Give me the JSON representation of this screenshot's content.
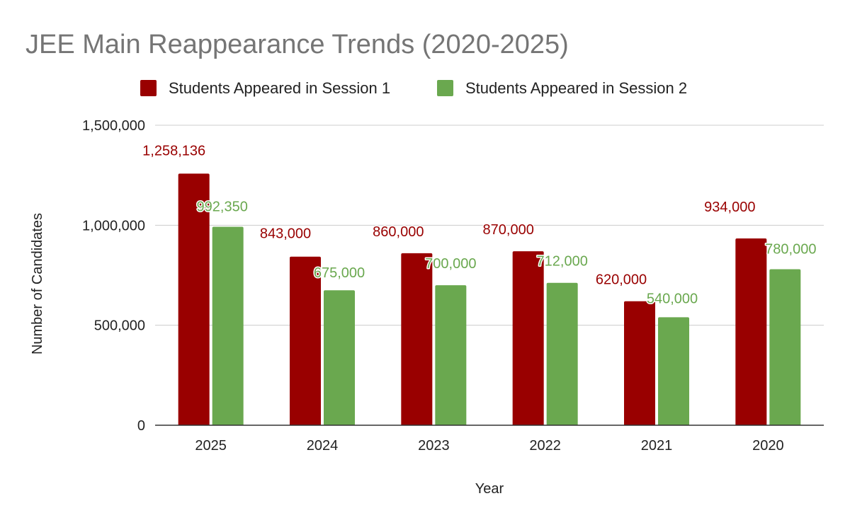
{
  "chart_data": {
    "type": "bar",
    "title": "JEE Main Reappearance Trends (2020-2025)",
    "xlabel": "Year",
    "ylabel": "Number of Candidates",
    "categories": [
      "2025",
      "2024",
      "2023",
      "2022",
      "2021",
      "2020"
    ],
    "ylim": [
      0,
      1500000
    ],
    "yticks": [
      0,
      500000,
      1000000,
      1500000
    ],
    "ytick_labels": [
      "0",
      "500,000",
      "1,000,000",
      "1,500,000"
    ],
    "grid": true,
    "legend_position": "top",
    "series": [
      {
        "name": "Students Appeared in Session 1",
        "color": "#990000",
        "values": [
          1258136,
          843000,
          860000,
          870000,
          620000,
          934000
        ],
        "labels": [
          "1,258,136",
          "843,000",
          "860,000",
          "870,000",
          "620,000",
          "934,000"
        ]
      },
      {
        "name": "Students Appeared in Session 2",
        "color": "#6aa84f",
        "values": [
          992350,
          675000,
          700000,
          712000,
          540000,
          780000
        ],
        "labels": [
          "992,350",
          "675,000",
          "700,000",
          "712,000",
          "540,000",
          "780,000"
        ]
      }
    ]
  }
}
